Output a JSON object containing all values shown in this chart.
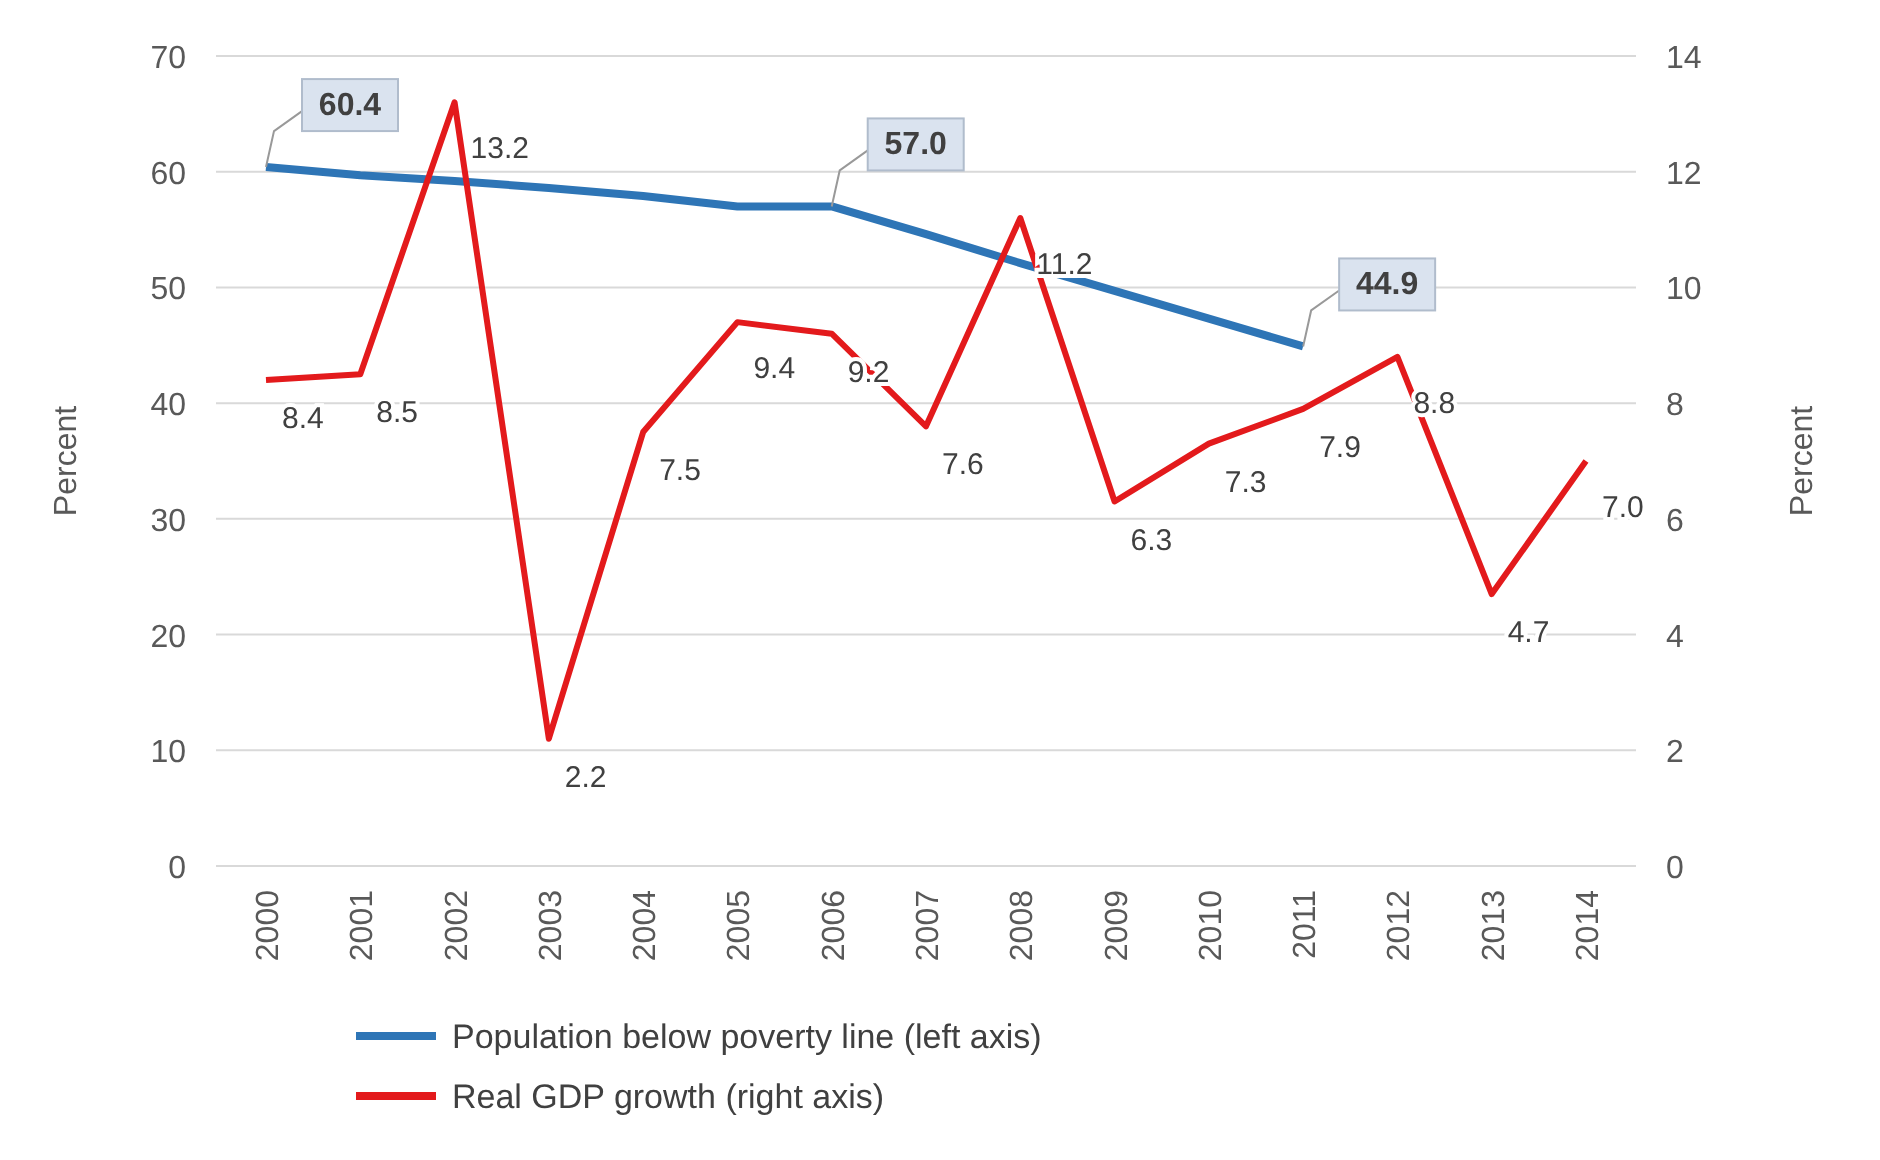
{
  "chart_data": {
    "type": "line",
    "categories": [
      "2000",
      "2001",
      "2002",
      "2003",
      "2004",
      "2005",
      "2006",
      "2007",
      "2008",
      "2009",
      "2010",
      "2011",
      "2012",
      "2013",
      "2014"
    ],
    "ylabel": "Percent",
    "y2label": "Percent",
    "ylim": [
      0,
      70
    ],
    "yticks": [
      0,
      10,
      20,
      30,
      40,
      50,
      60,
      70
    ],
    "y2lim": [
      0,
      14
    ],
    "y2ticks": [
      0,
      2,
      4,
      6,
      8,
      10,
      12,
      14
    ],
    "grid": "y",
    "legend": "bottom",
    "marker": "none",
    "line_style": "solid",
    "series": [
      {
        "name": "Population below poverty line (left axis)",
        "color": "#2e75b6",
        "values": [
          60.4,
          59.7,
          59.2,
          58.6,
          57.9,
          57.0,
          57.0,
          54.6,
          52.1,
          49.7,
          47.3,
          44.9,
          null,
          null,
          null
        ],
        "value_labels": [
          "60.4",
          null,
          null,
          null,
          null,
          null,
          "57.0",
          null,
          null,
          null,
          null,
          "44.9",
          null,
          null,
          null
        ]
      },
      {
        "name": "Real GDP growth (right axis)",
        "color": "#e31a1c",
        "axis": "y2",
        "values": [
          8.4,
          8.5,
          13.2,
          2.2,
          7.5,
          9.4,
          9.2,
          7.6,
          11.2,
          6.3,
          7.3,
          7.9,
          8.8,
          4.7,
          7.0
        ],
        "value_labels": [
          "8.4",
          "8.5",
          "13.2",
          "2.2",
          "7.5",
          "9.4",
          "9.2",
          "7.6",
          "11.2",
          "6.3",
          "7.3",
          "7.9",
          "8.8",
          "4.7",
          "7.0"
        ]
      }
    ]
  }
}
